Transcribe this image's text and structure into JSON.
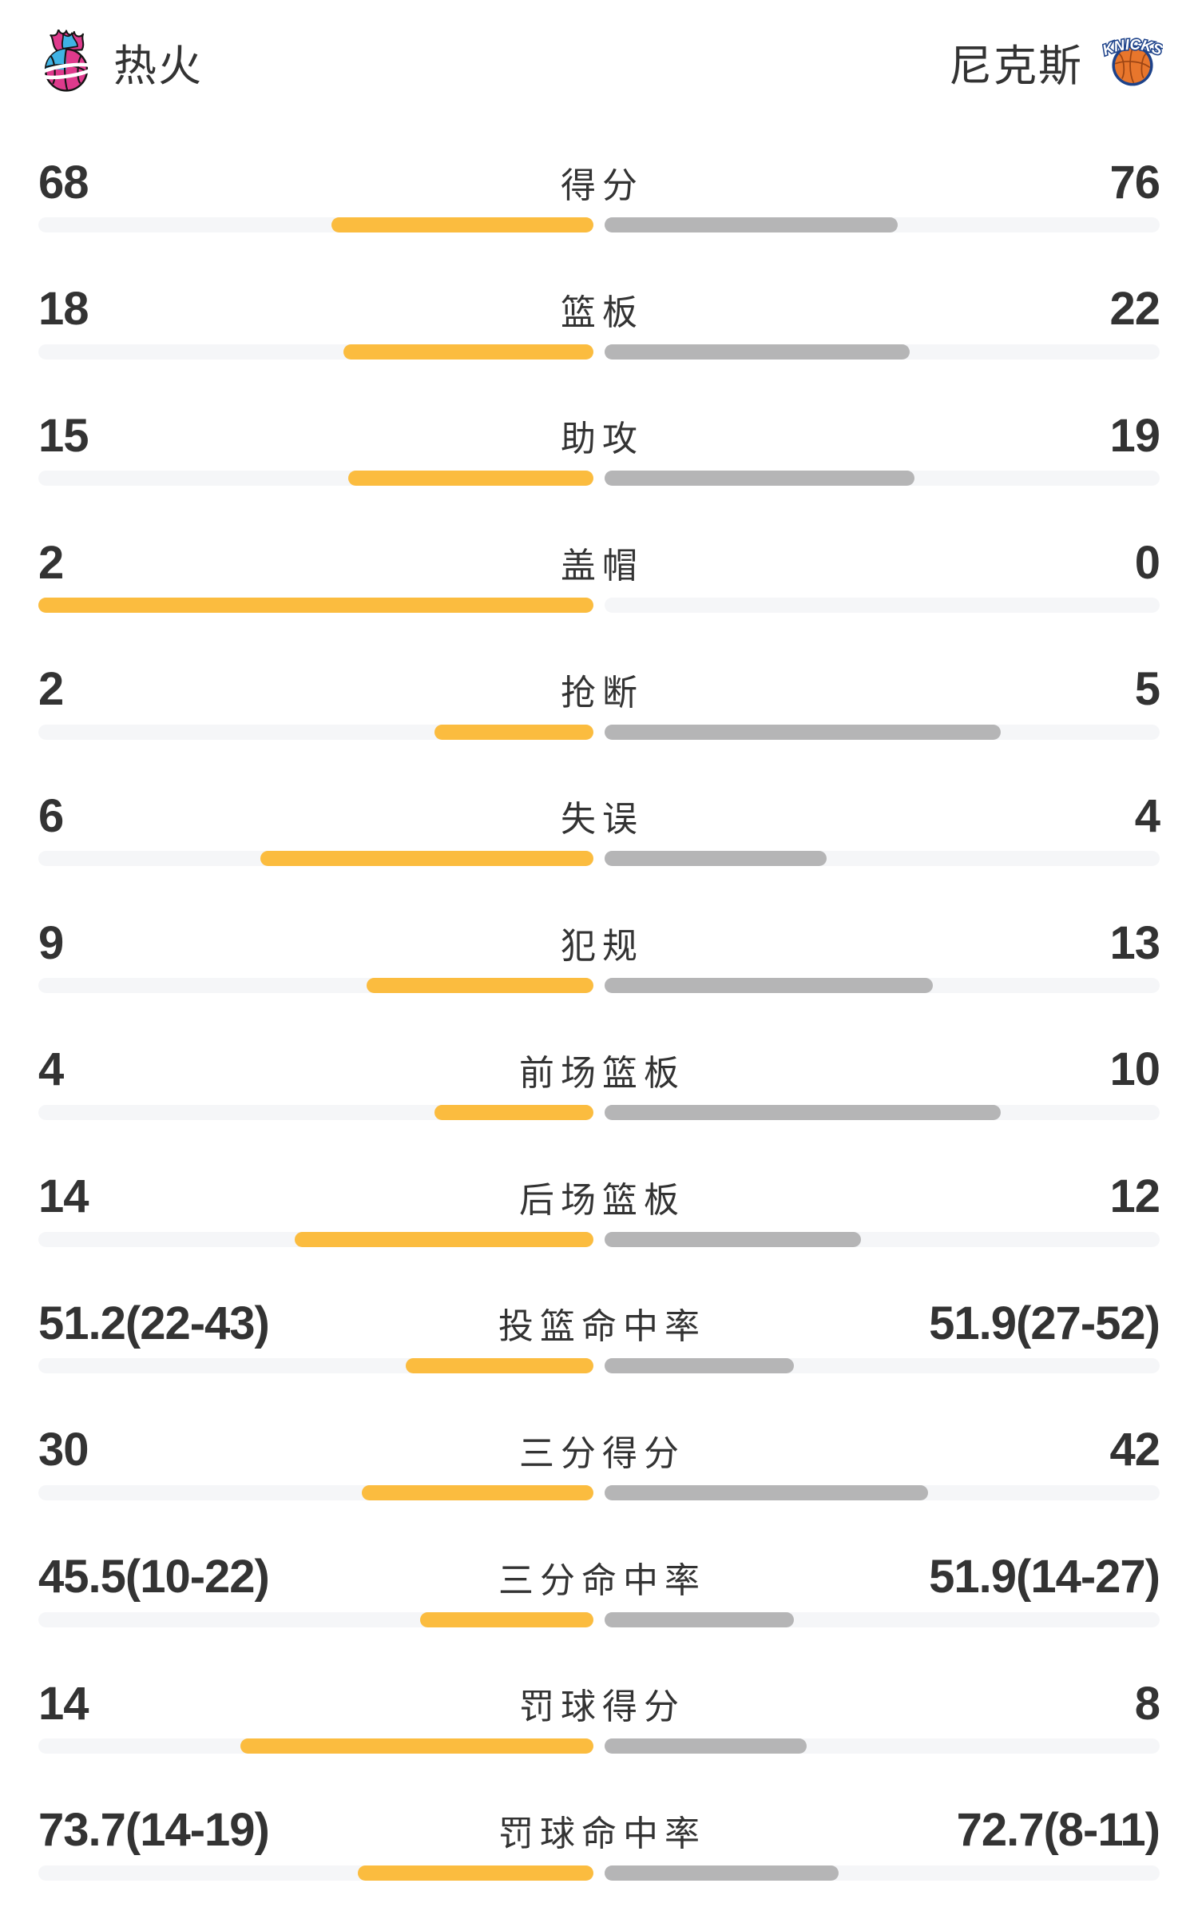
{
  "header": {
    "left_team": {
      "name": "热火",
      "logo": "heat-flaming-basketball-logo"
    },
    "right_team": {
      "name": "尼克斯",
      "logo": "knicks-basketball-logo"
    }
  },
  "colors": {
    "left_bar": "#FBBC3F",
    "right_bar": "#B5B5B6",
    "bar_track": "#F5F6F8",
    "text": "#333333",
    "heat_pink": "#DE3A8C",
    "heat_blue": "#3FB3E4",
    "knicks_orange": "#E8762C",
    "knicks_navy": "#1D428A"
  },
  "chart_data": {
    "type": "bar",
    "orientation": "horizontal paired comparison; each side's bar grows outward from the vertical centerline",
    "categories": [
      "得分",
      "篮板",
      "助攻",
      "盖帽",
      "抢断",
      "失误",
      "犯规",
      "前场篮板",
      "后场篮板",
      "投篮命中率",
      "三分得分",
      "三分命中率",
      "罚球得分",
      "罚球命中率"
    ],
    "row_types": [
      "count",
      "count",
      "count",
      "count",
      "count",
      "count",
      "count",
      "count",
      "count",
      "percent",
      "count",
      "percent",
      "count",
      "percent"
    ],
    "series": [
      {
        "name": "热火",
        "side": "left",
        "color": "#FBBC3F",
        "values": [
          68,
          18,
          15,
          2,
          2,
          6,
          9,
          4,
          14,
          51.2,
          30,
          45.5,
          14,
          73.7
        ],
        "labels": [
          "68",
          "18",
          "15",
          "2",
          "2",
          "6",
          "9",
          "4",
          "14",
          "51.2(22-43)",
          "30",
          "45.5(10-22)",
          "14",
          "73.7(14-19)"
        ]
      },
      {
        "name": "尼克斯",
        "side": "right",
        "color": "#B5B5B6",
        "values": [
          76,
          22,
          19,
          0,
          5,
          4,
          13,
          10,
          12,
          51.9,
          42,
          51.9,
          8,
          72.7
        ],
        "labels": [
          "76",
          "22",
          "19",
          "0",
          "5",
          "4",
          "13",
          "10",
          "12",
          "51.9(27-52)",
          "42",
          "51.9(14-27)",
          "8",
          "72.7(8-11)"
        ]
      }
    ],
    "bar_rule": "count rows: width = value/(left+right) of half-track; percent rows: width = value/(100+value) of half-track",
    "legend_position": "none",
    "grid": false
  }
}
